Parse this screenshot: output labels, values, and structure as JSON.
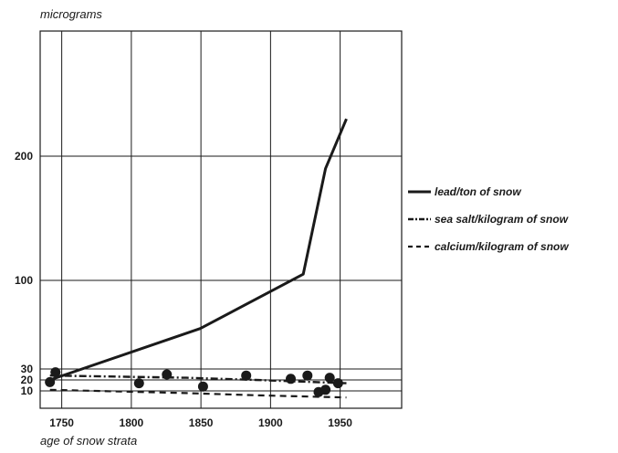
{
  "chart_data": {
    "type": "line",
    "ylabel": "micrograms",
    "xlabel": "age of snow strata",
    "x_ticks": [
      "1750",
      "1800",
      "1850",
      "1900",
      "1950"
    ],
    "y_ticks": [
      "10",
      "20",
      "30",
      "100",
      "200"
    ],
    "series": [
      {
        "name": "lead/ton of snow",
        "style": "solid",
        "points": [
          [
            1752,
            20
          ],
          [
            1860,
            62
          ],
          [
            1934,
            105
          ],
          [
            1950,
            190
          ],
          [
            1965,
            230
          ]
        ]
      },
      {
        "name": "sea salt/kilogram of snow",
        "style": "dash-dot",
        "points": [
          [
            1752,
            24
          ],
          [
            1850,
            22
          ],
          [
            1900,
            20
          ],
          [
            1965,
            17
          ]
        ]
      },
      {
        "name": "calcium/kilogram of snow",
        "style": "dashed",
        "points": [
          [
            1752,
            11
          ],
          [
            1850,
            8
          ],
          [
            1900,
            6
          ],
          [
            1965,
            4
          ]
        ]
      }
    ],
    "scatter_points": [
      [
        1752,
        18
      ],
      [
        1756,
        27
      ],
      [
        1816,
        17
      ],
      [
        1836,
        25
      ],
      [
        1862,
        14
      ],
      [
        1893,
        24
      ],
      [
        1925,
        21
      ],
      [
        1937,
        24
      ],
      [
        1945,
        9
      ],
      [
        1950,
        11
      ],
      [
        1953,
        22
      ],
      [
        1959,
        17
      ]
    ],
    "colors": {
      "ink": "#1a1a1a",
      "background": "#ffffff"
    }
  }
}
